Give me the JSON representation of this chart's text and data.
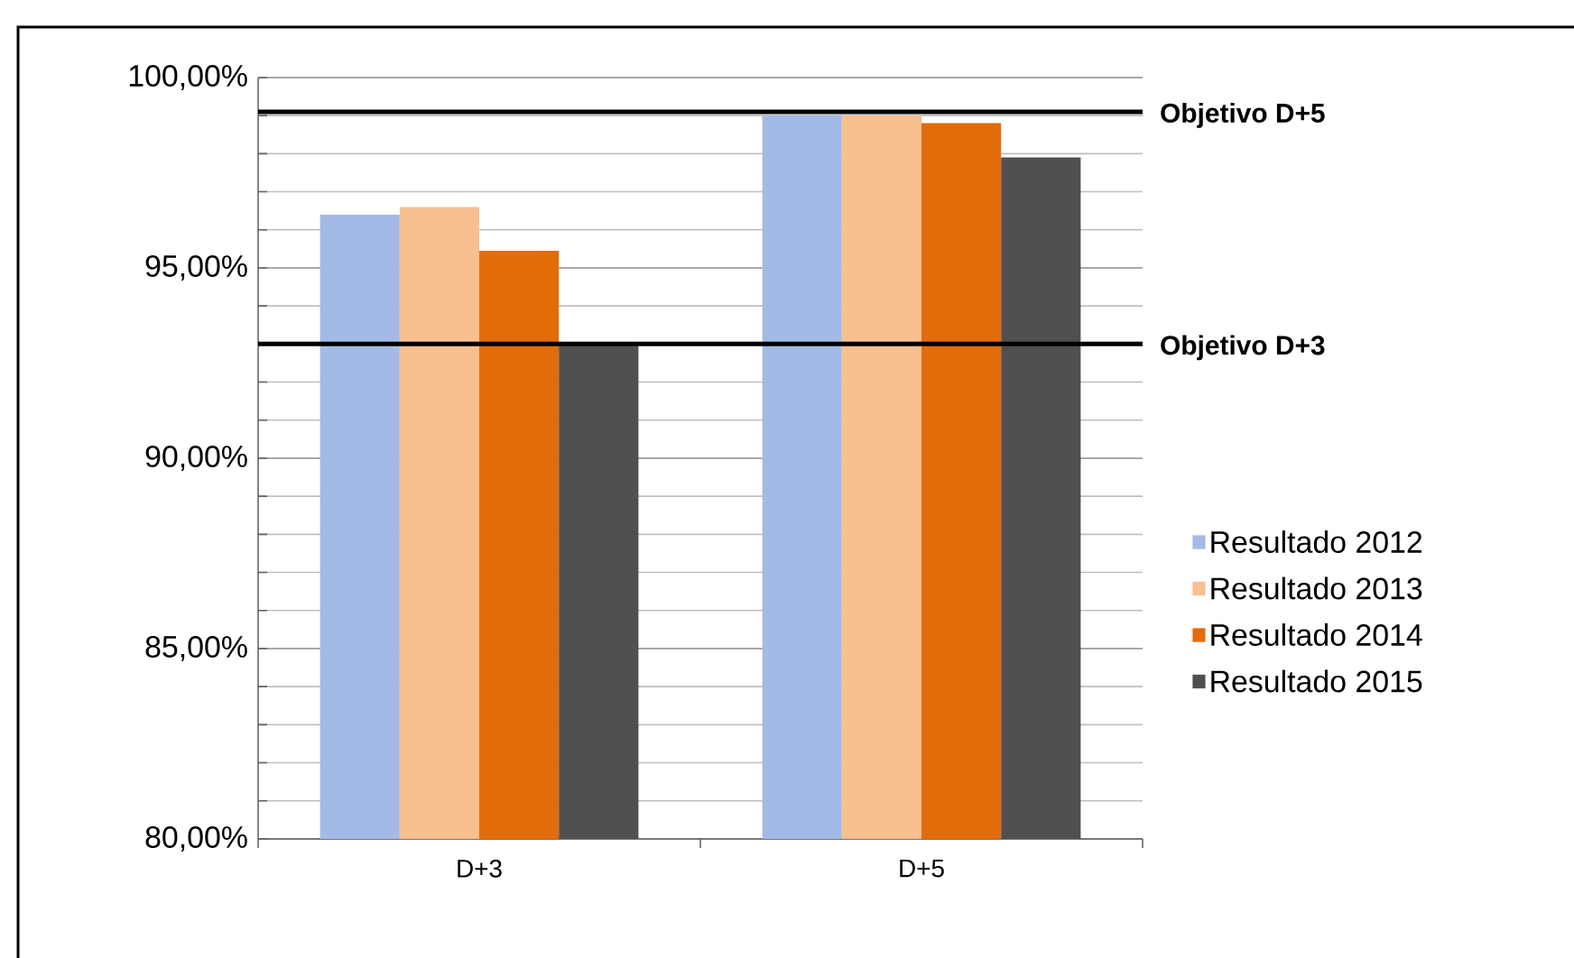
{
  "chart_data": {
    "type": "bar",
    "categories": [
      "D+3",
      "D+5"
    ],
    "series": [
      {
        "name": "Resultado 2012",
        "color": "#a4bae6",
        "values": [
          96.4,
          99.0
        ]
      },
      {
        "name": "Resultado 2013",
        "color": "#f8bf8f",
        "values": [
          96.6,
          99.0
        ]
      },
      {
        "name": "Resultado 2014",
        "color": "#e36c0a",
        "values": [
          95.45,
          98.8
        ]
      },
      {
        "name": "Resultado 2015",
        "color": "#505050",
        "values": [
          93.0,
          97.9
        ]
      }
    ],
    "ylim": [
      80,
      100
    ],
    "yticks": [
      {
        "value": 80,
        "label": "80,00%"
      },
      {
        "value": 85,
        "label": "85,00%"
      },
      {
        "value": 90,
        "label": "90,00%"
      },
      {
        "value": 95,
        "label": "95,00%"
      },
      {
        "value": 100,
        "label": "100,00%"
      }
    ],
    "ref_lines": [
      {
        "axis": "y",
        "value": 99.1,
        "label": "Objetivo D+5",
        "color": "#000000"
      },
      {
        "axis": "y",
        "value": 93.0,
        "label": "Objetivo D+3",
        "color": "#000000"
      }
    ],
    "grid": "y",
    "legend": "right"
  }
}
